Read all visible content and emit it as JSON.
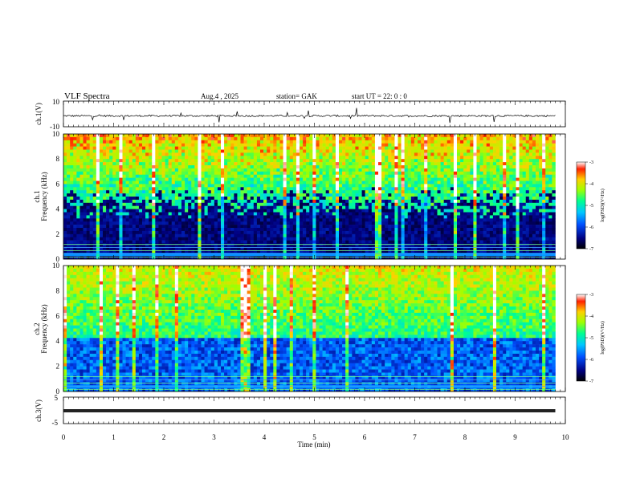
{
  "header": {
    "title": "VLF  Spectra",
    "date": "Aug.4   , 2025",
    "station": "station= GAK",
    "start": "start  UT  =    22: 0   : 0"
  },
  "chart_data": [
    {
      "type": "line",
      "panel": "ch1-waveform",
      "ylabel": "ch.1(V)",
      "yticks": [
        "10",
        "-10"
      ],
      "ylim": [
        -10,
        10
      ],
      "xlim": [
        0,
        10
      ],
      "data_end": 9.8
    },
    {
      "type": "heatmap",
      "panel": "ch1-spectrogram",
      "ylabel": "ch.1\nFrequency (kHz)",
      "ylabel_lines": [
        "ch.1",
        "Frequency (kHz)"
      ],
      "yticks": [
        "0",
        "2",
        "4",
        "6",
        "8",
        "10"
      ],
      "ylim": [
        0,
        10
      ],
      "xlim": [
        0,
        10
      ],
      "data_end": 9.8,
      "colorbar": {
        "label": "log(PSD)(V²/Hz)",
        "ticks": [
          "-3",
          "-4",
          "-5",
          "-6",
          "-7"
        ],
        "range": [
          -7,
          -3
        ]
      }
    },
    {
      "type": "heatmap",
      "panel": "ch2-spectrogram",
      "ylabel": "ch.2\nFrequency (kHz)",
      "ylabel_lines": [
        "ch.2",
        "Frequency (kHz)"
      ],
      "yticks": [
        "0",
        "2",
        "4",
        "6",
        "8",
        "10"
      ],
      "ylim": [
        0,
        10
      ],
      "xlim": [
        0,
        10
      ],
      "data_end": 9.8,
      "colorbar": {
        "label": "log(PSD)(V²/Hz)",
        "ticks": [
          "-3",
          "-4",
          "-5",
          "-6",
          "-7"
        ],
        "range": [
          -7,
          -3
        ]
      }
    },
    {
      "type": "line",
      "panel": "ch3-waveform",
      "ylabel": "ch.3(V)",
      "yticks": [
        "5",
        "-5"
      ],
      "ylim": [
        -5,
        5
      ],
      "xlim": [
        0,
        10
      ],
      "data_end": 9.8
    }
  ],
  "xaxis": {
    "label": "Time  (min)",
    "ticks": [
      "0",
      "1",
      "2",
      "3",
      "4",
      "5",
      "6",
      "7",
      "8",
      "9",
      "10"
    ]
  }
}
